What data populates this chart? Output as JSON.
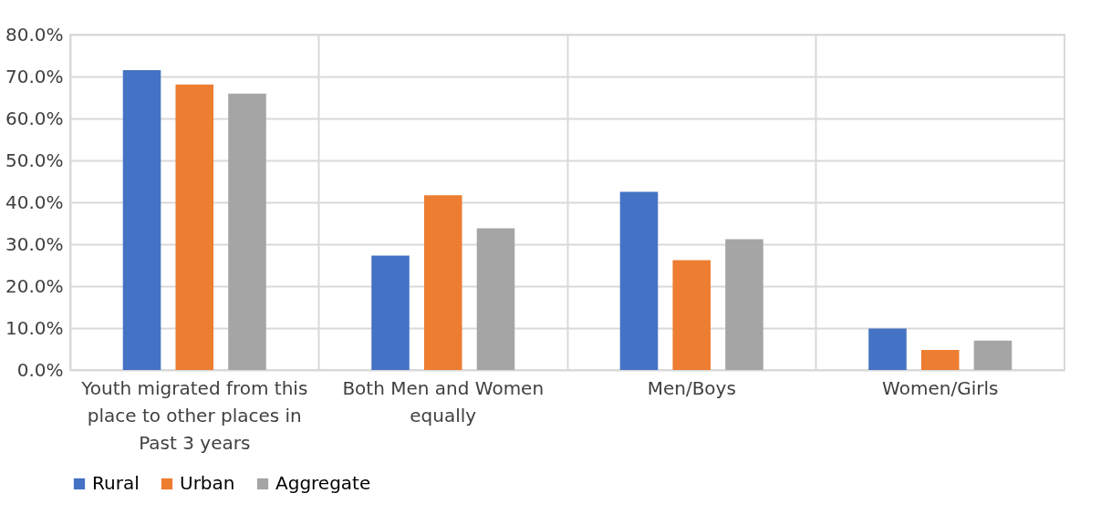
{
  "chart_data": {
    "type": "bar",
    "categories": [
      "Youth migrated from this place to other places in Past 3 years",
      "Both Men and Women equally",
      "Men/Boys",
      "Women/Girls"
    ],
    "series": [
      {
        "name": "Rural",
        "color": "#4472c4",
        "values": [
          71.5,
          27.3,
          42.5,
          9.9
        ]
      },
      {
        "name": "Urban",
        "color": "#ed7d31",
        "values": [
          68.1,
          41.7,
          26.2,
          4.8
        ]
      },
      {
        "name": "Aggregate",
        "color": "#a5a5a5",
        "values": [
          65.9,
          33.8,
          31.2,
          7.0
        ]
      }
    ],
    "ylim": [
      0,
      80
    ],
    "yticks": [
      {
        "value": 0,
        "label": "0.0%"
      },
      {
        "value": 10,
        "label": "10.0%"
      },
      {
        "value": 20,
        "label": "20.0%"
      },
      {
        "value": 30,
        "label": "30.0%"
      },
      {
        "value": 40,
        "label": "40.0%"
      },
      {
        "value": 50,
        "label": "50.0%"
      },
      {
        "value": 60,
        "label": "60.0%"
      },
      {
        "value": 70,
        "label": "70.0%"
      },
      {
        "value": 80,
        "label": "80.0%"
      }
    ],
    "grid": true,
    "legend": "bottom"
  }
}
